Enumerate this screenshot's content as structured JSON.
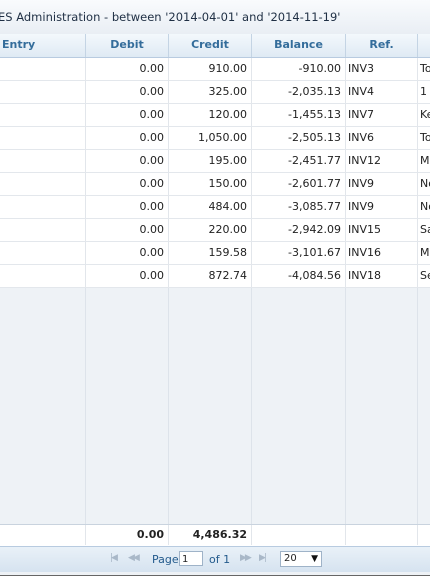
{
  "window": {
    "title": "ES Administration - between '2014-04-01' and '2014-11-19'"
  },
  "columns": [
    "Entry",
    "Debit",
    "Credit",
    "Balance",
    "Ref.",
    ""
  ],
  "rows": [
    {
      "entry": "",
      "debit": "0.00",
      "credit": "910.00",
      "balance": "-910.00",
      "ref": "INV3",
      "desc": "To"
    },
    {
      "entry": "",
      "debit": "0.00",
      "credit": "325.00",
      "balance": "-2,035.13",
      "ref": "INV4",
      "desc": "1"
    },
    {
      "entry": "",
      "debit": "0.00",
      "credit": "120.00",
      "balance": "-1,455.13",
      "ref": "INV7",
      "desc": "Ke"
    },
    {
      "entry": "",
      "debit": "0.00",
      "credit": "1,050.00",
      "balance": "-2,505.13",
      "ref": "INV6",
      "desc": "To"
    },
    {
      "entry": "",
      "debit": "0.00",
      "credit": "195.00",
      "balance": "-2,451.77",
      "ref": "INV12",
      "desc": "M"
    },
    {
      "entry": "",
      "debit": "0.00",
      "credit": "150.00",
      "balance": "-2,601.77",
      "ref": "INV9",
      "desc": "No"
    },
    {
      "entry": "",
      "debit": "0.00",
      "credit": "484.00",
      "balance": "-3,085.77",
      "ref": "INV9",
      "desc": "No"
    },
    {
      "entry": "",
      "debit": "0.00",
      "credit": "220.00",
      "balance": "-2,942.09",
      "ref": "INV15",
      "desc": "Sa"
    },
    {
      "entry": "",
      "debit": "0.00",
      "credit": "159.58",
      "balance": "-3,101.67",
      "ref": "INV16",
      "desc": "M"
    },
    {
      "entry": "",
      "debit": "0.00",
      "credit": "872.74",
      "balance": "-4,084.56",
      "ref": "INV18",
      "desc": "Se"
    }
  ],
  "summary": {
    "debit_total": "0.00",
    "credit_total": "4,486.32"
  },
  "pager": {
    "page_label": "Page",
    "page_value": "1",
    "of_label": "of 1",
    "page_size": "20",
    "icons": {
      "first": "first-page-icon",
      "prev": "prev-page-icon",
      "next": "next-page-icon",
      "last": "last-page-icon",
      "dropdown": "chevron-down-icon"
    }
  }
}
